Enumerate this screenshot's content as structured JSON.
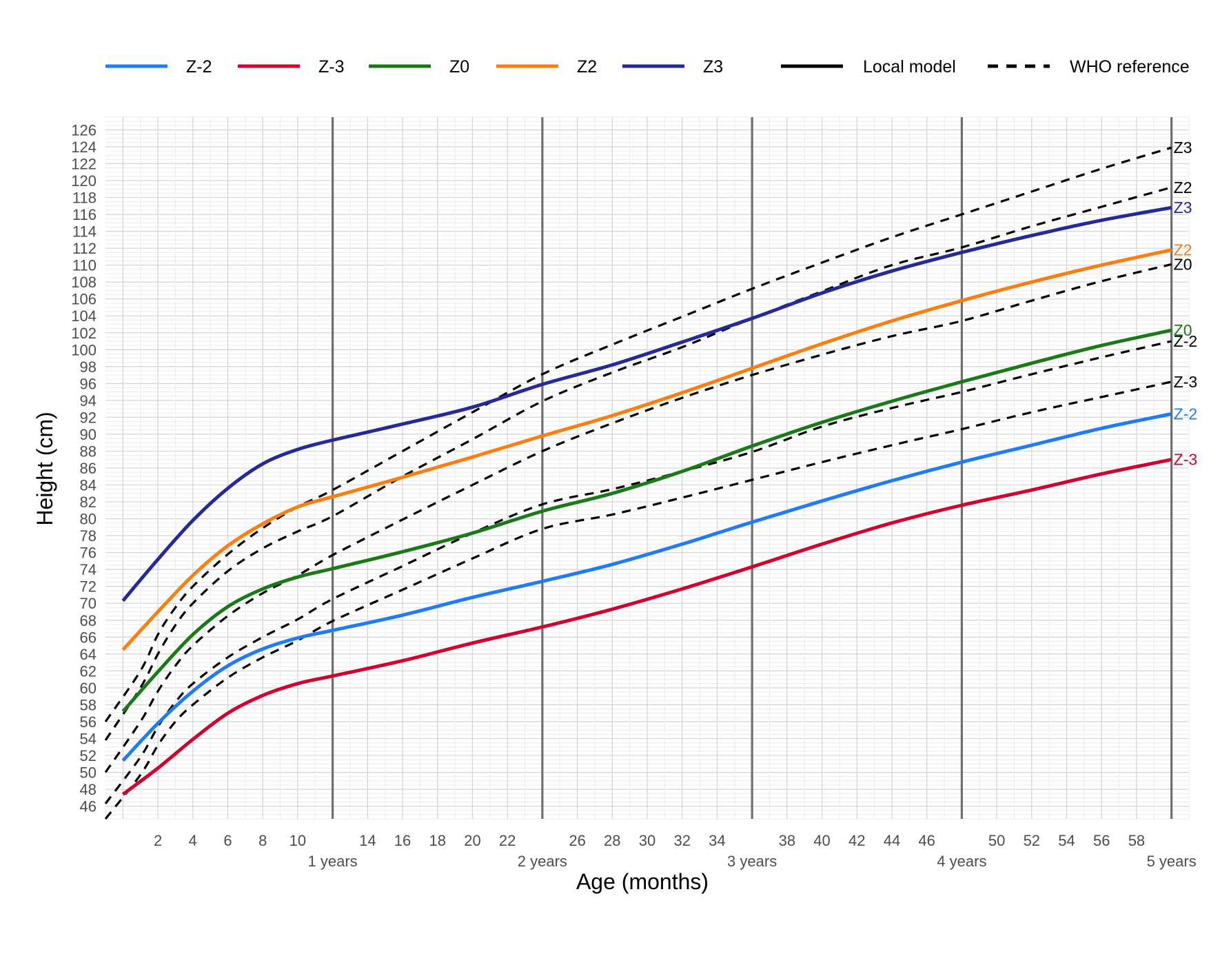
{
  "chart_data": {
    "type": "line",
    "xlabel": "Age (months)",
    "ylabel": "Height (cm)",
    "xlim": [
      -1,
      61
    ],
    "ylim": [
      44.5,
      127.5
    ],
    "x_ticks_months": [
      2,
      4,
      6,
      8,
      10,
      14,
      16,
      18,
      20,
      22,
      26,
      28,
      30,
      32,
      34,
      38,
      40,
      42,
      44,
      46,
      50,
      52,
      54,
      56,
      58
    ],
    "x_ticks_years": [
      {
        "x": 12,
        "label": "1 years"
      },
      {
        "x": 24,
        "label": "2 years"
      },
      {
        "x": 36,
        "label": "3 years"
      },
      {
        "x": 48,
        "label": "4 years"
      },
      {
        "x": 60,
        "label": "5 years"
      }
    ],
    "y_ticks": [
      46,
      48,
      50,
      52,
      54,
      56,
      58,
      60,
      62,
      64,
      66,
      68,
      70,
      72,
      74,
      76,
      78,
      80,
      82,
      84,
      86,
      88,
      90,
      92,
      94,
      96,
      98,
      100,
      102,
      104,
      106,
      108,
      110,
      112,
      114,
      116,
      118,
      120,
      122,
      124,
      126
    ],
    "grid": true,
    "legend": {
      "position": "top",
      "color_items": [
        {
          "name": "Z-2",
          "color": "#1f7cf5"
        },
        {
          "name": "Z-3",
          "color": "#d0022f"
        },
        {
          "name": "Z0",
          "color": "#1a7a1a"
        },
        {
          "name": "Z2",
          "color": "#fa7f12"
        },
        {
          "name": "Z3",
          "color": "#262a98"
        }
      ],
      "line_items": [
        {
          "name": "Local model",
          "style": "solid"
        },
        {
          "name": "WHO reference",
          "style": "dashed"
        }
      ]
    },
    "series": [
      {
        "name": "Z3",
        "model": "Local model",
        "color": "#262a98",
        "x": [
          0,
          2,
          4,
          6,
          8,
          10,
          12,
          16,
          20,
          24,
          28,
          32,
          36,
          40,
          44,
          48,
          52,
          56,
          60
        ],
        "y": [
          70.3,
          75.2,
          79.8,
          83.6,
          86.5,
          88.2,
          89.3,
          91.2,
          93.2,
          95.9,
          98.2,
          100.9,
          103.7,
          106.7,
          109.3,
          111.5,
          113.5,
          115.3,
          116.8
        ]
      },
      {
        "name": "Z2",
        "model": "Local model",
        "color": "#fa7f12",
        "x": [
          0,
          2,
          4,
          6,
          8,
          10,
          12,
          16,
          20,
          24,
          28,
          32,
          36,
          40,
          44,
          48,
          52,
          56,
          60
        ],
        "y": [
          64.5,
          69.0,
          73.3,
          76.8,
          79.4,
          81.4,
          82.6,
          84.9,
          87.3,
          89.8,
          92.2,
          94.9,
          97.8,
          100.7,
          103.4,
          105.8,
          108.0,
          110.0,
          111.8
        ]
      },
      {
        "name": "Z0",
        "model": "Local model",
        "color": "#1a7a1a",
        "x": [
          0,
          2,
          4,
          6,
          8,
          10,
          12,
          16,
          20,
          24,
          28,
          32,
          36,
          40,
          44,
          48,
          52,
          56,
          60
        ],
        "y": [
          57.2,
          61.9,
          66.3,
          69.6,
          71.7,
          73.1,
          74.1,
          76.1,
          78.3,
          80.9,
          83.0,
          85.6,
          88.6,
          91.4,
          93.9,
          96.2,
          98.4,
          100.5,
          102.3
        ]
      },
      {
        "name": "Z-2",
        "model": "Local model",
        "color": "#1f7cf5",
        "x": [
          0,
          2,
          4,
          6,
          8,
          10,
          12,
          16,
          20,
          24,
          28,
          32,
          36,
          40,
          44,
          48,
          52,
          56,
          60
        ],
        "y": [
          51.4,
          55.8,
          59.6,
          62.6,
          64.6,
          65.9,
          66.8,
          68.6,
          70.7,
          72.6,
          74.6,
          77.0,
          79.6,
          82.1,
          84.5,
          86.7,
          88.7,
          90.7,
          92.4
        ]
      },
      {
        "name": "Z-3",
        "model": "Local model",
        "color": "#d0022f",
        "x": [
          0,
          2,
          4,
          6,
          8,
          10,
          12,
          16,
          20,
          24,
          28,
          32,
          36,
          40,
          44,
          48,
          52,
          56,
          60
        ],
        "y": [
          47.4,
          50.5,
          53.9,
          57.0,
          59.1,
          60.5,
          61.4,
          63.2,
          65.3,
          67.2,
          69.3,
          71.7,
          74.3,
          77.0,
          79.5,
          81.6,
          83.4,
          85.3,
          87.0
        ]
      },
      {
        "name": "Z3",
        "model": "WHO reference",
        "color": "#000000",
        "x": [
          -1,
          1,
          2,
          3,
          4,
          6,
          8,
          10,
          12,
          16,
          20,
          24,
          28,
          32,
          36,
          40,
          44,
          48,
          52,
          56,
          60
        ],
        "y": [
          56.0,
          62.0,
          66.3,
          69.5,
          72.0,
          75.8,
          78.9,
          81.4,
          83.4,
          88.0,
          92.6,
          97.1,
          100.6,
          103.9,
          107.2,
          110.3,
          113.3,
          116.0,
          118.7,
          121.4,
          123.9
        ]
      },
      {
        "name": "Z2",
        "model": "WHO reference",
        "color": "#000000",
        "x": [
          -1,
          1,
          2,
          3,
          4,
          6,
          8,
          10,
          12,
          16,
          20,
          24,
          28,
          32,
          36,
          40,
          44,
          48,
          52,
          56,
          60
        ],
        "y": [
          53.8,
          60.0,
          64.0,
          67.4,
          70.0,
          73.8,
          76.5,
          78.5,
          80.3,
          85.0,
          89.4,
          93.9,
          97.3,
          100.3,
          103.7,
          106.9,
          110.0,
          112.1,
          114.6,
          116.9,
          119.2
        ]
      },
      {
        "name": "Z0",
        "model": "WHO reference",
        "color": "#000000",
        "x": [
          -1,
          1,
          2,
          3,
          4,
          6,
          8,
          10,
          12,
          16,
          20,
          24,
          28,
          32,
          36,
          40,
          44,
          48,
          52,
          56,
          60
        ],
        "y": [
          50.0,
          56.0,
          59.6,
          62.6,
          65.0,
          68.5,
          71.2,
          73.3,
          75.7,
          79.9,
          84.0,
          88.0,
          91.3,
          94.3,
          97.0,
          99.4,
          101.6,
          103.4,
          105.8,
          108.1,
          110.1
        ]
      },
      {
        "name": "Z-2",
        "model": "WHO reference",
        "color": "#000000",
        "x": [
          -1,
          1,
          2,
          3,
          4,
          6,
          8,
          10,
          12,
          16,
          20,
          24,
          28,
          32,
          36,
          40,
          44,
          48,
          52,
          56,
          60
        ],
        "y": [
          46.3,
          51.8,
          55.4,
          58.3,
          60.5,
          63.6,
          66.0,
          68.1,
          70.5,
          74.4,
          78.3,
          81.7,
          83.5,
          85.6,
          87.9,
          90.9,
          93.1,
          95.0,
          97.1,
          99.1,
          101.0
        ]
      },
      {
        "name": "Z-3",
        "model": "WHO reference",
        "color": "#000000",
        "x": [
          -1,
          1,
          2,
          3,
          4,
          6,
          8,
          10,
          12,
          16,
          20,
          24,
          28,
          32,
          36,
          40,
          44,
          48,
          52,
          56,
          60
        ],
        "y": [
          44.5,
          49.7,
          53.2,
          56.0,
          58.0,
          61.2,
          63.6,
          65.6,
          67.9,
          71.6,
          75.3,
          78.8,
          80.5,
          82.5,
          84.6,
          86.7,
          88.7,
          90.6,
          92.6,
          94.4,
          96.2
        ]
      }
    ]
  }
}
